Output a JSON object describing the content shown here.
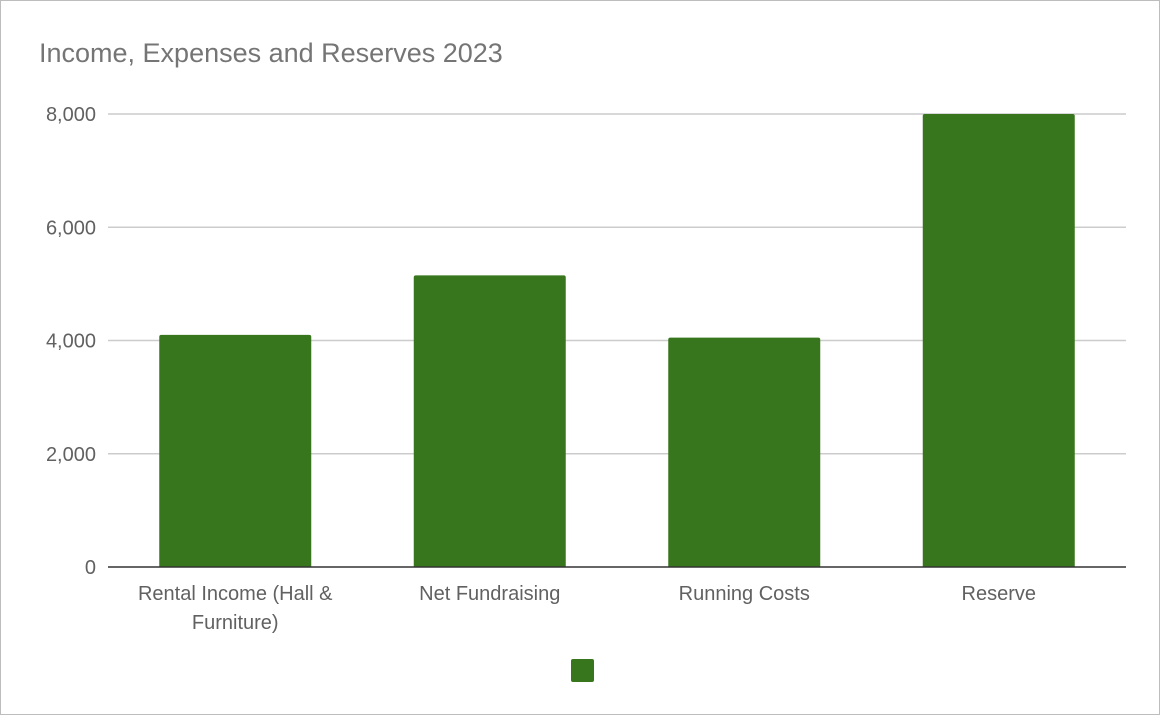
{
  "chart_data": {
    "type": "bar",
    "title": "Income, Expenses and Reserves 2023",
    "xlabel": "",
    "ylabel": "",
    "categories": [
      "Rental Income (Hall & Furniture)",
      "Net Fundraising",
      "Running Costs",
      "Reserve"
    ],
    "category_lines": [
      [
        "Rental Income (Hall &",
        "Furniture)"
      ],
      [
        "Net Fundraising"
      ],
      [
        "Running Costs"
      ],
      [
        "Reserve"
      ]
    ],
    "values": [
      4100,
      5150,
      4050,
      8000
    ],
    "ylim": [
      0,
      8000
    ],
    "yticks": [
      0,
      2000,
      4000,
      6000,
      8000
    ],
    "ytick_labels": [
      "0",
      "2,000",
      "4,000",
      "6,000",
      "8,000"
    ],
    "bar_color": "#38761d",
    "grid": true,
    "legend": {
      "position": "bottom",
      "entries": [
        {
          "name": "",
          "color": "#38761d"
        }
      ]
    }
  }
}
